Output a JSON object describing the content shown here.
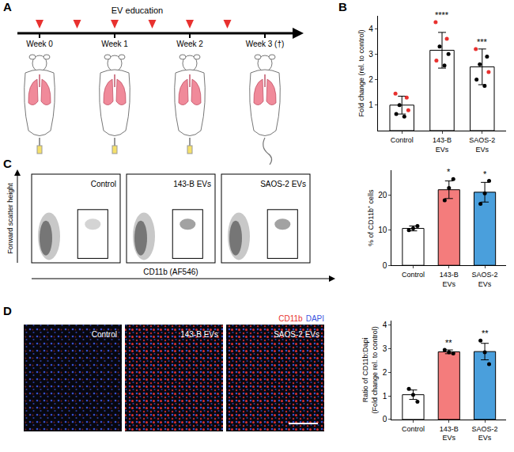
{
  "panels": [
    "A",
    "B",
    "C",
    "D"
  ],
  "diagram": {
    "title": "EV education",
    "weeks": [
      {
        "value": 0,
        "label": "Week 0"
      },
      {
        "value": 1,
        "label": "Week 1"
      },
      {
        "value": 2,
        "label": "Week 2"
      },
      {
        "value": 3,
        "label": "Week 3 (†)"
      }
    ],
    "injections": [
      0,
      0.5,
      1,
      1.5,
      2,
      2.5
    ],
    "color": "#e8312f"
  },
  "flow_plots": {
    "y_label": "Forward scatter height",
    "x_label": "CD11b (AF546)",
    "groups": [
      "Control",
      "143-B EVs",
      "SAOS-2 EVs"
    ]
  },
  "micrographs": {
    "legend": [
      {
        "name": "CD11b",
        "color": "#e8312f"
      },
      {
        "name": "DAPI",
        "color": "#3a55e0"
      }
    ],
    "groups": [
      "Control",
      "143-B EVs",
      "SAOS-2 EVs"
    ]
  },
  "chart_data": [
    {
      "type": "bar",
      "categories": [
        "Control",
        "143-B EVs",
        "SAOS-2 EVs"
      ],
      "values": [
        1.0,
        3.15,
        2.5
      ],
      "errors": [
        0.35,
        0.7,
        0.7
      ],
      "colors": [
        "#ffffff",
        "#ffffff",
        "#ffffff"
      ],
      "points": [
        [
          1.45,
          1.3,
          1.0,
          0.8,
          0.65,
          0.55
        ],
        [
          4.25,
          3.6,
          3.3,
          3.0,
          2.75,
          2.55
        ],
        [
          3.2,
          2.9,
          2.6,
          2.3,
          2.0,
          1.75
        ]
      ],
      "point_colors": [
        [
          "#e8312f",
          "#e8312f",
          "#000000",
          "#e8312f",
          "#000000",
          "#000000"
        ],
        [
          "#e8312f",
          "#e8312f",
          "#000000",
          "#000000",
          "#e8312f",
          "#000000"
        ],
        [
          "#e8312f",
          "#000000",
          "#000000",
          "#e8312f",
          "#000000",
          "#000000"
        ]
      ],
      "annotations": [
        {
          "category": "143-B EVs",
          "text": "****"
        },
        {
          "category": "SAOS-2 EVs",
          "text": "***"
        }
      ],
      "y_label": "Fold change (rel. to control)",
      "ylim": [
        0,
        4.5
      ],
      "yticks": [
        1,
        2,
        3,
        4
      ]
    },
    {
      "type": "bar",
      "categories": [
        "Control",
        "143-B EVs",
        "SAOS-2 EVs"
      ],
      "values": [
        10.5,
        21.5,
        20.8
      ],
      "errors": [
        0.7,
        2.5,
        2.8
      ],
      "colors": [
        "#ffffff",
        "#f47c7c",
        "#4a9fdc"
      ],
      "points": [
        [
          10.0,
          10.5,
          11.2
        ],
        [
          18.5,
          22.0,
          24.5
        ],
        [
          17.5,
          20.5,
          24.0
        ]
      ],
      "point_colors": [
        [
          "#000000",
          "#000000",
          "#000000"
        ],
        [
          "#000000",
          "#000000",
          "#000000"
        ],
        [
          "#000000",
          "#000000",
          "#000000"
        ]
      ],
      "annotations": [
        {
          "category": "143-B EVs",
          "text": "*"
        },
        {
          "category": "SAOS-2 EVs",
          "text": "*"
        }
      ],
      "y_label": "% of CD11b⁺ cells",
      "ylim": [
        0,
        27
      ],
      "yticks": [
        0,
        10,
        20
      ]
    },
    {
      "type": "bar",
      "categories": [
        "Control",
        "143-B EVs",
        "SAOS-2 EVs"
      ],
      "values": [
        1.05,
        2.87,
        2.88
      ],
      "errors": [
        0.2,
        0.08,
        0.35
      ],
      "colors": [
        "#ffffff",
        "#f47c7c",
        "#4a9fdc"
      ],
      "points": [
        [
          1.3,
          1.05,
          0.75
        ],
        [
          2.95,
          2.85,
          2.8
        ],
        [
          3.35,
          2.85,
          2.35
        ]
      ],
      "point_colors": [
        [
          "#000000",
          "#000000",
          "#000000"
        ],
        [
          "#000000",
          "#000000",
          "#000000"
        ],
        [
          "#000000",
          "#000000",
          "#000000"
        ]
      ],
      "annotations": [
        {
          "category": "143-B EVs",
          "text": "**"
        },
        {
          "category": "SAOS-2 EVs",
          "text": "**"
        }
      ],
      "y_label": "Ratio of CD11b:Dapi\n(Fold change rel. to control)",
      "ylim": [
        0,
        4.2
      ],
      "yticks": [
        0,
        1,
        2,
        3,
        4
      ]
    }
  ]
}
